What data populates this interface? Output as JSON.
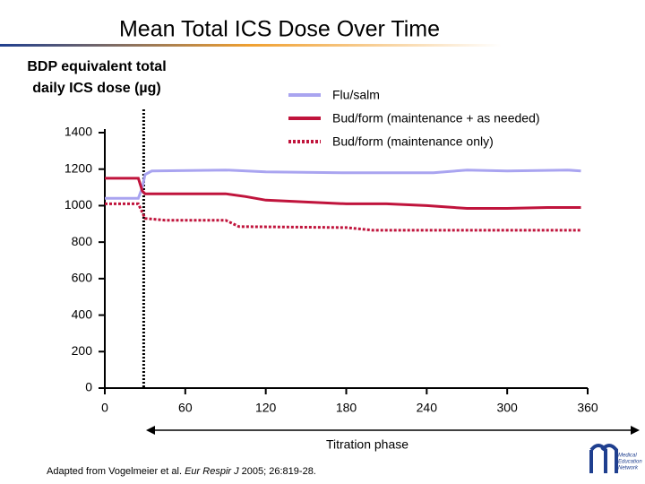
{
  "chart_data": {
    "type": "line",
    "title": "Mean Total ICS Dose Over Time",
    "ylabel": [
      "BDP equivalent total",
      "daily ICS dose (µg)"
    ],
    "xlabel": "Titration phase",
    "xlim": [
      0,
      360
    ],
    "xticks": [
      0,
      60,
      120,
      180,
      240,
      300,
      360
    ],
    "ylim": [
      0,
      1400
    ],
    "yticks": [
      0,
      200,
      400,
      600,
      800,
      1000,
      1200,
      1400
    ],
    "vline": 29,
    "series": [
      {
        "name": "Flu/salm",
        "color": "#a9a4f0",
        "style": "solid",
        "x": [
          0,
          25,
          28,
          30,
          35,
          90,
          120,
          180,
          245,
          270,
          300,
          345,
          355
        ],
        "values": [
          1040,
          1040,
          1100,
          1170,
          1190,
          1195,
          1185,
          1180,
          1180,
          1195,
          1190,
          1195,
          1190
        ]
      },
      {
        "name": "Bud/form (maintenance + as needed)",
        "color": "#c0143c",
        "style": "solid",
        "x": [
          0,
          25,
          28,
          30,
          90,
          105,
          120,
          150,
          180,
          210,
          240,
          270,
          300,
          330,
          355
        ],
        "values": [
          1150,
          1150,
          1080,
          1065,
          1065,
          1050,
          1030,
          1020,
          1010,
          1010,
          1000,
          985,
          985,
          990,
          990
        ]
      },
      {
        "name": "Bud/form (maintenance only)",
        "color": "#c0143c",
        "style": "dotted",
        "x": [
          0,
          25,
          30,
          45,
          90,
          100,
          180,
          200,
          355
        ],
        "values": [
          1010,
          1010,
          930,
          920,
          920,
          885,
          880,
          865,
          865
        ]
      }
    ],
    "footnote": [
      "Adapted from Vogelmeier et al. ",
      "Eur Respir J",
      " 2005; 26:819-28."
    ],
    "logo": [
      "Medical",
      "Education",
      "Network"
    ]
  }
}
